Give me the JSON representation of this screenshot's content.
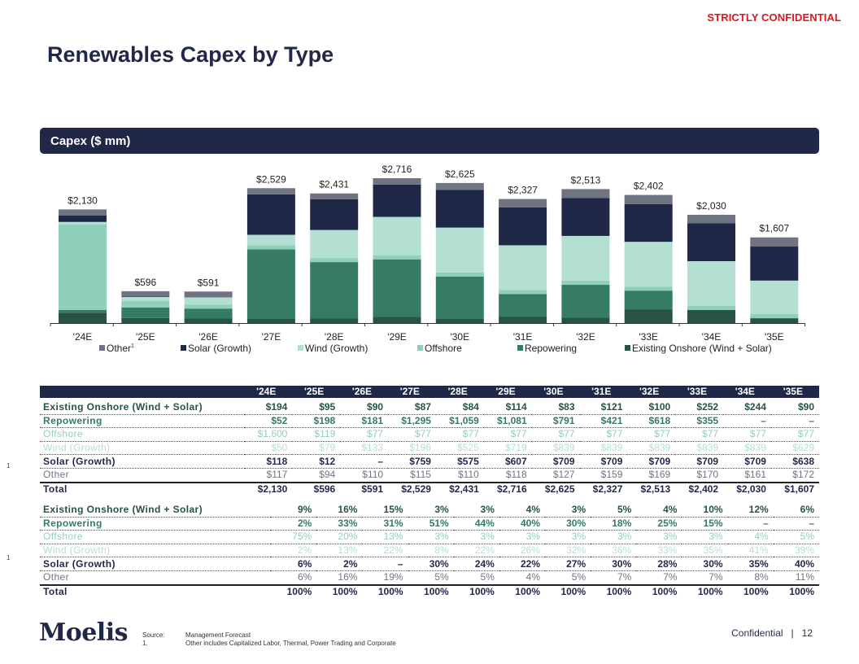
{
  "header": {
    "confidential_tag": "STRICTLY CONFIDENTIAL",
    "title": "Renewables Capex by Type",
    "panel_title": "Capex ($ mm)"
  },
  "colors": {
    "Other": "#707482",
    "Solar (Growth)": "#1f2847",
    "Wind (Growth)": "#b3e0d3",
    "Offshore": "#8fcfbb",
    "Repowering": "#357b66",
    "Existing Onshore (Wind + Solar)": "#275345"
  },
  "chart_data": {
    "type": "bar",
    "stacked": true,
    "title": "Capex ($ mm)",
    "xlabel": "",
    "ylabel": "",
    "ylim": [
      0,
      2716
    ],
    "grid": false,
    "legend_position": "bottom",
    "categories": [
      "'24E",
      "'25E",
      "'26E",
      "'27E",
      "'28E",
      "'29E",
      "'30E",
      "'31E",
      "'32E",
      "'33E",
      "'34E",
      "'35E"
    ],
    "series": [
      {
        "name": "Existing Onshore (Wind + Solar)",
        "values": [
          194,
          95,
          90,
          87,
          84,
          114,
          83,
          121,
          100,
          252,
          244,
          90
        ]
      },
      {
        "name": "Repowering",
        "values": [
          52,
          198,
          181,
          1295,
          1059,
          1081,
          791,
          421,
          618,
          355,
          0,
          0
        ]
      },
      {
        "name": "Offshore",
        "values": [
          1600,
          119,
          77,
          77,
          77,
          77,
          77,
          77,
          77,
          77,
          77,
          77
        ]
      },
      {
        "name": "Wind (Growth)",
        "values": [
          50,
          79,
          133,
          196,
          525,
          719,
          839,
          839,
          839,
          839,
          839,
          629
        ]
      },
      {
        "name": "Solar (Growth)",
        "values": [
          118,
          12,
          0,
          759,
          575,
          607,
          709,
          709,
          709,
          709,
          709,
          638
        ]
      },
      {
        "name": "Other",
        "values": [
          117,
          94,
          110,
          115,
          110,
          118,
          127,
          159,
          169,
          170,
          161,
          172
        ]
      }
    ],
    "totals": [
      2130,
      596,
      591,
      2529,
      2431,
      2716,
      2625,
      2327,
      2513,
      2402,
      2030,
      1607
    ],
    "total_labels": [
      "$2,130",
      "$596",
      "$591",
      "$2,529",
      "$2,431",
      "$2,716",
      "$2,625",
      "$2,327",
      "$2,513",
      "$2,402",
      "$2,030",
      "$1,607"
    ],
    "legend": [
      {
        "name": "Other",
        "sup": "1"
      },
      {
        "name": "Solar (Growth)",
        "sup": ""
      },
      {
        "name": "Wind (Growth)",
        "sup": ""
      },
      {
        "name": "Offshore",
        "sup": ""
      },
      {
        "name": "Repowering",
        "sup": ""
      },
      {
        "name": "Existing Onshore (Wind + Solar)",
        "sup": ""
      }
    ]
  },
  "table": {
    "columns": [
      "'24E",
      "'25E",
      "'26E",
      "'27E",
      "'28E",
      "'29E",
      "'30E",
      "'31E",
      "'32E",
      "'33E",
      "'34E",
      "'35E"
    ],
    "dollar_rows": [
      {
        "label": "Existing Onshore (Wind + Solar)",
        "cls": "c-existing",
        "values": [
          "$194",
          "$95",
          "$90",
          "$87",
          "$84",
          "$114",
          "$83",
          "$121",
          "$100",
          "$252",
          "$244",
          "$90"
        ]
      },
      {
        "label": "Repowering",
        "cls": "c-repower",
        "values": [
          "$52",
          "$198",
          "$181",
          "$1,295",
          "$1,059",
          "$1,081",
          "$791",
          "$421",
          "$618",
          "$355",
          "–",
          "–"
        ]
      },
      {
        "label": "Offshore",
        "cls": "c-offshore",
        "values": [
          "$1,600",
          "$119",
          "$77",
          "$77",
          "$77",
          "$77",
          "$77",
          "$77",
          "$77",
          "$77",
          "$77",
          "$77"
        ]
      },
      {
        "label": "Wind (Growth)",
        "cls": "c-wind",
        "values": [
          "$50",
          "$79",
          "$133",
          "$196",
          "$525",
          "$719",
          "$839",
          "$839",
          "$839",
          "$839",
          "$839",
          "$629"
        ]
      },
      {
        "label": "Solar (Growth)",
        "cls": "c-solar",
        "values": [
          "$118",
          "$12",
          "–",
          "$759",
          "$575",
          "$607",
          "$709",
          "$709",
          "$709",
          "$709",
          "$709",
          "$638"
        ]
      },
      {
        "label": "Other",
        "cls": "c-other",
        "values": [
          "$117",
          "$94",
          "$110",
          "$115",
          "$110",
          "$118",
          "$127",
          "$159",
          "$169",
          "$170",
          "$161",
          "$172"
        ]
      },
      {
        "label": "Total",
        "cls": "c-total",
        "values": [
          "$2,130",
          "$596",
          "$591",
          "$2,529",
          "$2,431",
          "$2,716",
          "$2,625",
          "$2,327",
          "$2,513",
          "$2,402",
          "$2,030",
          "$1,607"
        ]
      }
    ],
    "pct_rows": [
      {
        "label": "Existing Onshore (Wind + Solar)",
        "cls": "c-existing",
        "values": [
          "9%",
          "16%",
          "15%",
          "3%",
          "3%",
          "4%",
          "3%",
          "5%",
          "4%",
          "10%",
          "12%",
          "6%"
        ]
      },
      {
        "label": "Repowering",
        "cls": "c-repower",
        "values": [
          "2%",
          "33%",
          "31%",
          "51%",
          "44%",
          "40%",
          "30%",
          "18%",
          "25%",
          "15%",
          "–",
          "–"
        ]
      },
      {
        "label": "Offshore",
        "cls": "c-offshore",
        "values": [
          "75%",
          "20%",
          "13%",
          "3%",
          "3%",
          "3%",
          "3%",
          "3%",
          "3%",
          "3%",
          "4%",
          "5%"
        ]
      },
      {
        "label": "Wind (Growth)",
        "cls": "c-wind",
        "values": [
          "2%",
          "13%",
          "22%",
          "8%",
          "22%",
          "26%",
          "32%",
          "36%",
          "33%",
          "35%",
          "41%",
          "39%"
        ]
      },
      {
        "label": "Solar (Growth)",
        "cls": "c-solar",
        "values": [
          "6%",
          "2%",
          "–",
          "30%",
          "24%",
          "22%",
          "27%",
          "30%",
          "28%",
          "30%",
          "35%",
          "40%"
        ]
      },
      {
        "label": "Other",
        "cls": "c-other",
        "values": [
          "6%",
          "16%",
          "19%",
          "5%",
          "5%",
          "4%",
          "5%",
          "7%",
          "7%",
          "7%",
          "8%",
          "11%"
        ]
      },
      {
        "label": "Total",
        "cls": "c-total",
        "values": [
          "100%",
          "100%",
          "100%",
          "100%",
          "100%",
          "100%",
          "100%",
          "100%",
          "100%",
          "100%",
          "100%",
          "100%"
        ]
      }
    ],
    "footnote_marker": "1"
  },
  "footer": {
    "logo": "Moelis",
    "source_key": "Source:",
    "source_text": "Management Forecast",
    "note_key": "1.",
    "note_text": "Other includes Capitalized Labor, Thermal, Power Trading and Corporate",
    "confidential": "Confidential",
    "separator": "|",
    "page": "12"
  }
}
